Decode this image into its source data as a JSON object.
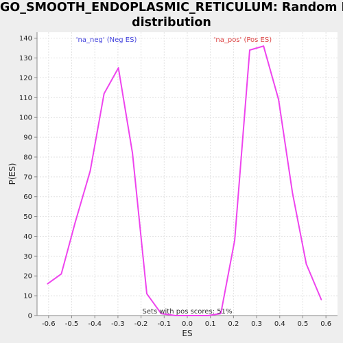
{
  "chart_data": {
    "type": "line",
    "title": "GO_SMOOTH_ENDOPLASMIC_RETICULUM: Random ES distribution",
    "title_lines": [
      "GO_SMOOTH_ENDOPLASMIC_RETICULUM: Random ES",
      "distribution"
    ],
    "xlabel": "ES",
    "ylabel": "P(ES)",
    "xlim": [
      -0.65,
      0.65
    ],
    "ylim": [
      0,
      143
    ],
    "x_ticks": [
      -0.6,
      -0.5,
      -0.4,
      -0.3,
      -0.2,
      -0.1,
      0.0,
      0.1,
      0.2,
      0.3,
      0.4,
      0.5,
      0.6
    ],
    "x_tick_labels": [
      "-0.6",
      "-0.5",
      "-0.4",
      "-0.3",
      "-0.2",
      "-0.1",
      "0.0",
      "0.1",
      "0.2",
      "0.3",
      "0.4",
      "0.5",
      "0.6"
    ],
    "y_ticks": [
      0,
      10,
      20,
      30,
      40,
      50,
      60,
      70,
      80,
      90,
      100,
      110,
      120,
      130,
      140
    ],
    "y_tick_labels": [
      "0",
      "10",
      "20",
      "30",
      "40",
      "50",
      "60",
      "70",
      "80",
      "90",
      "100",
      "110",
      "120",
      "130",
      "140"
    ],
    "grid": true,
    "series": [
      {
        "color": "#ee44ee",
        "points": [
          {
            "x": -0.605,
            "y": 16
          },
          {
            "x": -0.545,
            "y": 21
          },
          {
            "x": -0.485,
            "y": 47
          },
          {
            "x": -0.42,
            "y": 73
          },
          {
            "x": -0.36,
            "y": 112
          },
          {
            "x": -0.298,
            "y": 125
          },
          {
            "x": -0.237,
            "y": 82
          },
          {
            "x": -0.175,
            "y": 11
          },
          {
            "x": -0.113,
            "y": 1
          },
          {
            "x": -0.05,
            "y": 0
          },
          {
            "x": 0.01,
            "y": 0
          },
          {
            "x": 0.09,
            "y": 0
          },
          {
            "x": 0.145,
            "y": 1
          },
          {
            "x": 0.205,
            "y": 38
          },
          {
            "x": 0.27,
            "y": 134
          },
          {
            "x": 0.33,
            "y": 136
          },
          {
            "x": 0.395,
            "y": 109
          },
          {
            "x": 0.455,
            "y": 62
          },
          {
            "x": 0.515,
            "y": 26
          },
          {
            "x": 0.58,
            "y": 8
          }
        ]
      }
    ],
    "legend": [
      {
        "label": "'na_neg' (Neg ES)",
        "color": "#4444dd",
        "x": -0.35
      },
      {
        "label": "'na_pos' (Pos ES)",
        "color": "#dd4444",
        "x": 0.24
      }
    ],
    "annotation": "Sets with pos scores: 51%",
    "annotation_x": 0.0
  },
  "colors": {
    "background": "#eeeeee",
    "plot_background": "#ffffff",
    "grid": "#e2e2e2",
    "axis": "#888888",
    "line": "#ee44ee"
  }
}
